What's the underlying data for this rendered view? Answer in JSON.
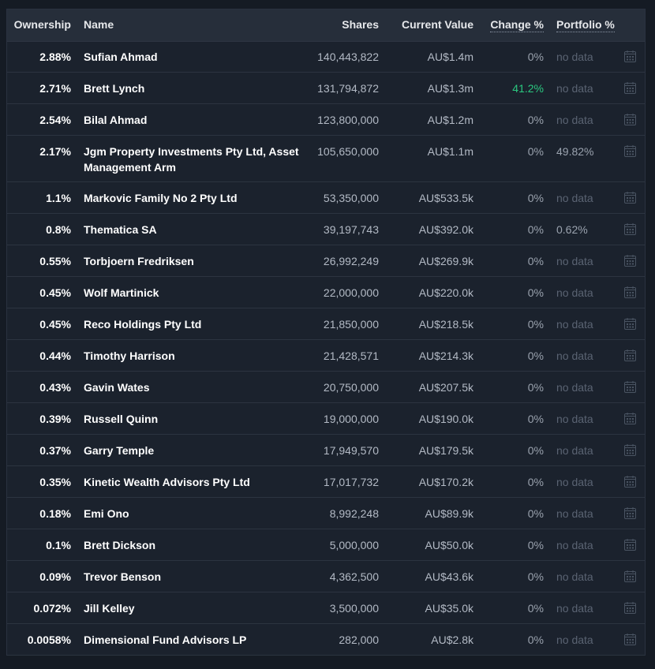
{
  "table": {
    "headers": {
      "ownership": "Ownership",
      "name": "Name",
      "shares": "Shares",
      "current_value": "Current Value",
      "change": "Change %",
      "portfolio": "Portfolio %"
    },
    "rows": [
      {
        "ownership": "2.88%",
        "name": "Sufian Ahmad",
        "shares": "140,443,822",
        "value": "AU$1.4m",
        "change": "0%",
        "portfolio": "no data"
      },
      {
        "ownership": "2.71%",
        "name": "Brett Lynch",
        "shares": "131,794,872",
        "value": "AU$1.3m",
        "change": "41.2%",
        "portfolio": "no data"
      },
      {
        "ownership": "2.54%",
        "name": "Bilal Ahmad",
        "shares": "123,800,000",
        "value": "AU$1.2m",
        "change": "0%",
        "portfolio": "no data"
      },
      {
        "ownership": "2.17%",
        "name": "Jgm Property Investments Pty Ltd, Asset Management Arm",
        "shares": "105,650,000",
        "value": "AU$1.1m",
        "change": "0%",
        "portfolio": "49.82%"
      },
      {
        "ownership": "1.1%",
        "name": "Markovic Family No 2 Pty Ltd",
        "shares": "53,350,000",
        "value": "AU$533.5k",
        "change": "0%",
        "portfolio": "no data"
      },
      {
        "ownership": "0.8%",
        "name": "Thematica SA",
        "shares": "39,197,743",
        "value": "AU$392.0k",
        "change": "0%",
        "portfolio": "0.62%"
      },
      {
        "ownership": "0.55%",
        "name": "Torbjoern Fredriksen",
        "shares": "26,992,249",
        "value": "AU$269.9k",
        "change": "0%",
        "portfolio": "no data"
      },
      {
        "ownership": "0.45%",
        "name": "Wolf Martinick",
        "shares": "22,000,000",
        "value": "AU$220.0k",
        "change": "0%",
        "portfolio": "no data"
      },
      {
        "ownership": "0.45%",
        "name": "Reco Holdings Pty Ltd",
        "shares": "21,850,000",
        "value": "AU$218.5k",
        "change": "0%",
        "portfolio": "no data"
      },
      {
        "ownership": "0.44%",
        "name": "Timothy Harrison",
        "shares": "21,428,571",
        "value": "AU$214.3k",
        "change": "0%",
        "portfolio": "no data"
      },
      {
        "ownership": "0.43%",
        "name": "Gavin Wates",
        "shares": "20,750,000",
        "value": "AU$207.5k",
        "change": "0%",
        "portfolio": "no data"
      },
      {
        "ownership": "0.39%",
        "name": "Russell Quinn",
        "shares": "19,000,000",
        "value": "AU$190.0k",
        "change": "0%",
        "portfolio": "no data"
      },
      {
        "ownership": "0.37%",
        "name": "Garry Temple",
        "shares": "17,949,570",
        "value": "AU$179.5k",
        "change": "0%",
        "portfolio": "no data"
      },
      {
        "ownership": "0.35%",
        "name": "Kinetic Wealth Advisors Pty Ltd",
        "shares": "17,017,732",
        "value": "AU$170.2k",
        "change": "0%",
        "portfolio": "no data"
      },
      {
        "ownership": "0.18%",
        "name": "Emi Ono",
        "shares": "8,992,248",
        "value": "AU$89.9k",
        "change": "0%",
        "portfolio": "no data"
      },
      {
        "ownership": "0.1%",
        "name": "Brett Dickson",
        "shares": "5,000,000",
        "value": "AU$50.0k",
        "change": "0%",
        "portfolio": "no data"
      },
      {
        "ownership": "0.09%",
        "name": "Trevor Benson",
        "shares": "4,362,500",
        "value": "AU$43.6k",
        "change": "0%",
        "portfolio": "no data"
      },
      {
        "ownership": "0.072%",
        "name": "Jill Kelley",
        "shares": "3,500,000",
        "value": "AU$35.0k",
        "change": "0%",
        "portfolio": "no data"
      },
      {
        "ownership": "0.0058%",
        "name": "Dimensional Fund Advisors LP",
        "shares": "282,000",
        "value": "AU$2.8k",
        "change": "0%",
        "portfolio": "no data"
      }
    ]
  },
  "icons": {
    "row_action": "calendar-icon"
  },
  "colors": {
    "positive_change": "#2bc880",
    "no_data": "#5a6372"
  }
}
